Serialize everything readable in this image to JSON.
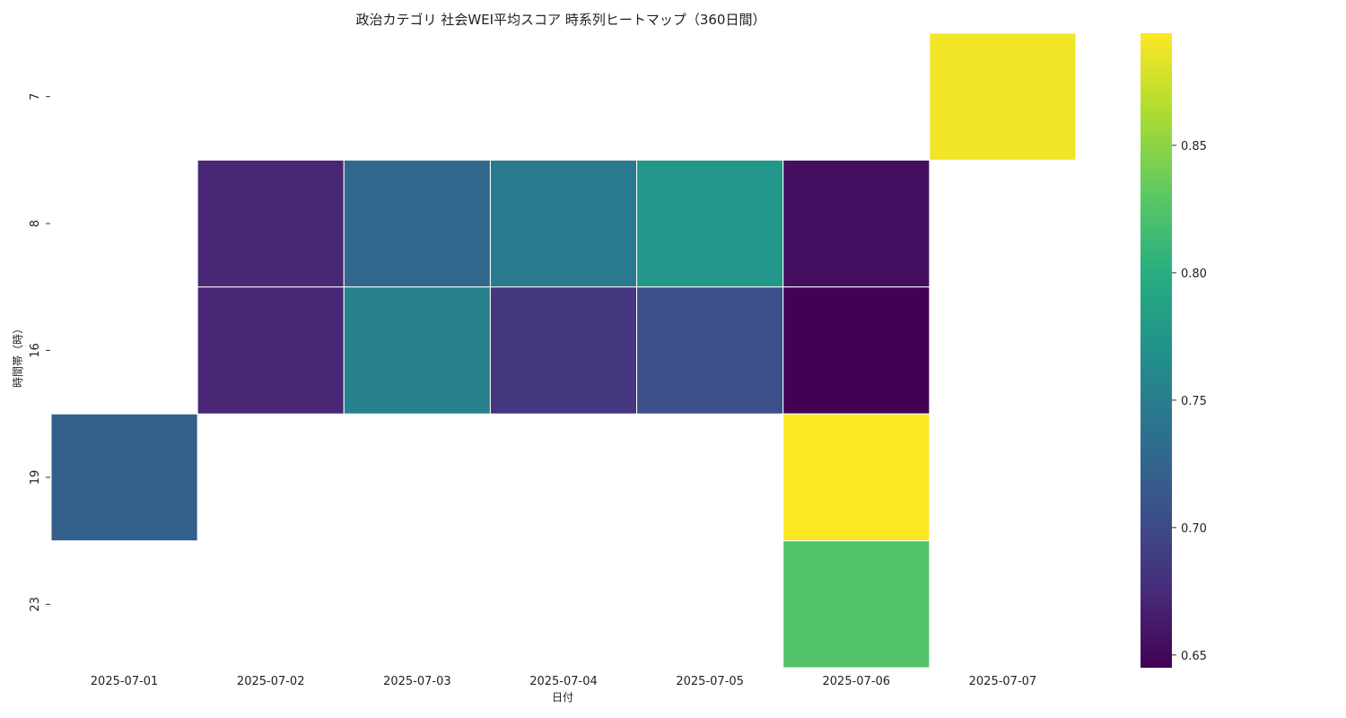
{
  "chart_data": {
    "type": "heatmap",
    "title": "政治カテゴリ 社会WEI平均スコア 時系列ヒートマップ（360日間）",
    "xlabel": "日付",
    "ylabel": "時間帯（時）",
    "x_categories": [
      "2025-07-01",
      "2025-07-02",
      "2025-07-03",
      "2025-07-04",
      "2025-07-05",
      "2025-07-06",
      "2025-07-07"
    ],
    "y_categories": [
      "7",
      "8",
      "16",
      "19",
      "23"
    ],
    "values": [
      [
        null,
        null,
        null,
        null,
        null,
        null,
        0.889
      ],
      [
        null,
        0.672,
        0.728,
        0.746,
        0.775,
        0.655,
        null
      ],
      [
        null,
        0.672,
        0.753,
        0.684,
        0.705,
        0.645,
        null
      ],
      [
        0.721,
        null,
        null,
        null,
        null,
        0.894,
        null
      ],
      [
        null,
        null,
        null,
        null,
        null,
        0.825,
        null
      ]
    ],
    "colorscale": "viridis",
    "vmin": 0.645,
    "vmax": 0.894,
    "colorbar_ticks": [
      "0.65",
      "0.70",
      "0.75",
      "0.80",
      "0.85"
    ]
  }
}
